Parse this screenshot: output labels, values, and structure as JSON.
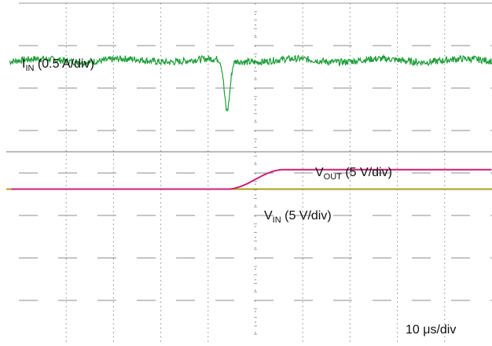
{
  "colors": {
    "background": "#ffffff",
    "grid": "#8c8c8c",
    "reference_line": "#777777",
    "i_in": "#1f9e3a",
    "v_out": "#cc1f7a",
    "v_in": "#a9a21a"
  },
  "chart_data": {
    "type": "line",
    "title": "",
    "grid": "dashed 10x8 oscilloscope divisions",
    "x_axis": {
      "divisions": 10,
      "scale_label": "10 μs/div",
      "range_us": [
        0,
        100
      ]
    },
    "y_axis": {
      "divisions": 8
    },
    "series": [
      {
        "key": "i_in",
        "label_main": "I",
        "label_sub": "IN",
        "label_rest": " (0.5 A/div)",
        "color": "#1f9e3a",
        "baseline_div": 6.65,
        "noise_div": 0.08,
        "dip": {
          "t_us": 44,
          "depth_div": 1.2,
          "width_us": 1.2
        }
      },
      {
        "key": "v_out",
        "label_main": "V",
        "label_sub": "OUT",
        "label_rest": " (5 V/div)",
        "color": "#cc1f7a",
        "start_div": 3.62,
        "end_div": 4.08,
        "rise_start_us": 44,
        "rise_end_us": 56
      },
      {
        "key": "v_in",
        "label_main": "V",
        "label_sub": "IN",
        "label_rest": " (5 V/div)",
        "color": "#a9a21a",
        "level_div": 3.62
      }
    ],
    "reference_line_div": 4.5
  }
}
